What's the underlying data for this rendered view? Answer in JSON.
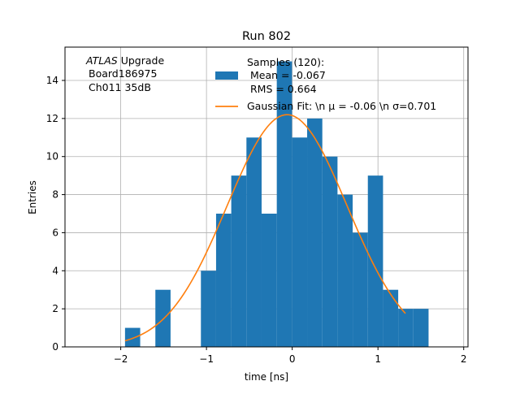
{
  "chart_data": {
    "type": "bar",
    "title": "Run 802",
    "xlabel": "time [ns]",
    "ylabel": "Entries",
    "xlim": [
      -2.65,
      2.05
    ],
    "ylim": [
      0,
      15.75
    ],
    "grid": true,
    "x_ticks": [
      -2,
      -1,
      0,
      1,
      2
    ],
    "y_ticks": [
      0,
      2,
      4,
      6,
      8,
      10,
      12,
      14
    ],
    "bin_width": 0.177,
    "histogram": {
      "bins": [
        {
          "x0": -1.95,
          "count": 1
        },
        {
          "x0": -1.773,
          "count": 0
        },
        {
          "x0": -1.596,
          "count": 3
        },
        {
          "x0": -1.419,
          "count": 0
        },
        {
          "x0": -1.242,
          "count": 0
        },
        {
          "x0": -1.065,
          "count": 4
        },
        {
          "x0": -0.888,
          "count": 7
        },
        {
          "x0": -0.711,
          "count": 9
        },
        {
          "x0": -0.534,
          "count": 11
        },
        {
          "x0": -0.357,
          "count": 7
        },
        {
          "x0": -0.18,
          "count": 15
        },
        {
          "x0": -0.003,
          "count": 11
        },
        {
          "x0": 0.174,
          "count": 12
        },
        {
          "x0": 0.351,
          "count": 10
        },
        {
          "x0": 0.528,
          "count": 8
        },
        {
          "x0": 0.705,
          "count": 6
        },
        {
          "x0": 0.882,
          "count": 9
        },
        {
          "x0": 1.059,
          "count": 3
        },
        {
          "x0": 1.236,
          "count": 2
        },
        {
          "x0": 1.413,
          "count": 2
        }
      ],
      "color": "#1f77b4"
    },
    "fit": {
      "mu": -0.06,
      "sigma": 0.701,
      "peak": 12.2,
      "x_range": [
        -1.95,
        1.32
      ],
      "color": "#ff7f0e"
    },
    "annotation": {
      "italic_part": "ATLAS",
      "rest": " Upgrade",
      "line2": "Board186975",
      "line3": "Ch011 35dB"
    },
    "legend": {
      "position": "upper-right",
      "histogram_label_lines": [
        "Samples (120):",
        "Mean = -0.067",
        "RMS = 0.664"
      ],
      "fit_label": "Gaussian Fit: \\n μ = -0.06 \\n σ=0.701"
    }
  }
}
